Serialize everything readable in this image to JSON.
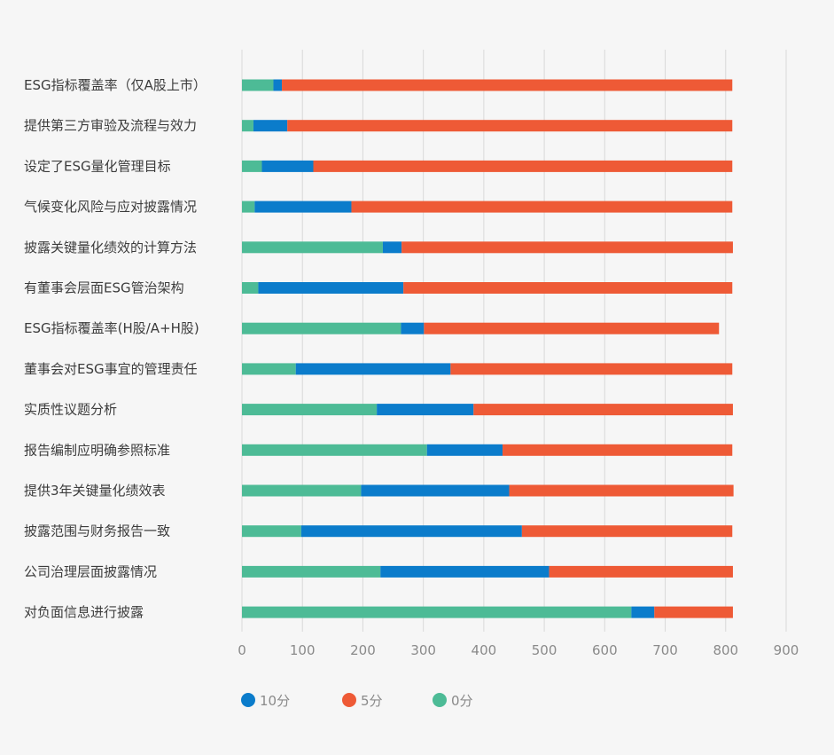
{
  "chart_data": {
    "type": "bar",
    "orientation": "horizontal",
    "stacked": true,
    "title": "",
    "xlabel": "",
    "ylabel": "",
    "xlim": [
      0,
      900
    ],
    "x_ticks": [
      0,
      100,
      200,
      300,
      400,
      500,
      600,
      700,
      800,
      900
    ],
    "grid": true,
    "legend_position": "bottom-left",
    "categories": [
      "ESG指标覆盖率（仅A股上市）",
      "提供第三方审验及流程与效力",
      "设定了ESG量化管理目标",
      "气候变化风险与应对披露情况",
      "披露关键量化绩效的计算方法",
      "有董事会层面ESG管治架构",
      "ESG指标覆盖率(H股/A+H股)",
      "董事会对ESG事宜的管理责任",
      "实质性议题分析",
      "报告编制应明确参照标准",
      "提供3年关键量化绩效表",
      "披露范围与财务报告一致",
      "公司治理层面披露情况",
      "对负面信息进行披露"
    ],
    "series": [
      {
        "name": "0分",
        "color": "#4dbb96",
        "values": [
          52,
          19,
          33,
          21,
          233,
          27,
          263,
          89,
          223,
          306,
          197,
          98,
          229,
          644
        ]
      },
      {
        "name": "10分",
        "color": "#0b7ccb",
        "values": [
          14,
          56,
          85,
          160,
          31,
          240,
          38,
          256,
          160,
          125,
          245,
          365,
          279,
          38
        ]
      },
      {
        "name": "5分",
        "color": "#ee5a36",
        "values": [
          745,
          736,
          693,
          630,
          548,
          544,
          488,
          466,
          429,
          380,
          371,
          348,
          304,
          130
        ]
      }
    ],
    "legend_order": [
      "10分",
      "5分",
      "0分"
    ]
  }
}
